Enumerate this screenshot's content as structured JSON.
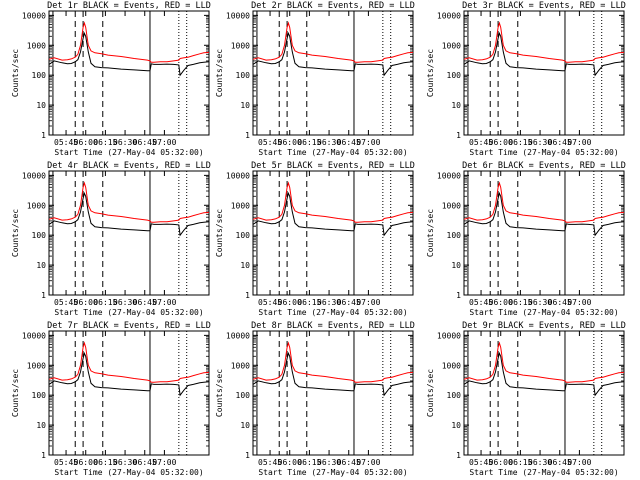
{
  "colors": {
    "background": "#ffffff",
    "axes": "#000000",
    "events": "#000000",
    "lld": "#ff0000"
  },
  "panel_titles": [
    "Det 1r BLACK = Events, RED = LLD",
    "Det 2r BLACK = Events, RED = LLD",
    "Det 3r BLACK = Events, RED = LLD",
    "Det 4r BLACK = Events, RED = LLD",
    "Det 5r BLACK = Events, RED = LLD",
    "Det 6r BLACK = Events, RED = LLD",
    "Det 7r BLACK = Events, RED = LLD",
    "Det 8r BLACK = Events, RED = LLD",
    "Det 9r BLACK = Events, RED = LLD"
  ],
  "chart_data": {
    "type": "line",
    "layout": "3x3 grid of panels",
    "ylabel": "Counts/sec",
    "xlabel": "Start Time (27-May-04 05:32:00)",
    "yscale": "log",
    "ylim": [
      1,
      14000
    ],
    "y_ticks": [
      1,
      10,
      100,
      1000,
      10000
    ],
    "y_tick_labels": [
      "1",
      "10",
      "100",
      "1000",
      "10000"
    ],
    "x_range_minutes": [
      0,
      122
    ],
    "x_ticks_minutes": [
      13,
      28,
      43,
      58,
      73,
      88
    ],
    "x_tick_labels": [
      "05:45",
      "06:00",
      "06:15",
      "06:30",
      "06:45",
      "07:00"
    ],
    "solid_vertical_lines_minutes": [
      3,
      77
    ],
    "dashed_vertical_lines_minutes": [
      20,
      26,
      41
    ],
    "dotted_vertical_lines_minutes": [
      99,
      105
    ],
    "x": [
      0,
      4,
      10,
      14,
      17,
      20,
      22,
      24,
      26,
      27,
      28,
      30,
      32,
      35,
      40,
      45,
      55,
      65,
      75,
      77,
      78,
      80,
      85,
      90,
      95,
      99,
      100,
      103,
      106,
      110,
      115,
      118,
      122
    ],
    "series": [
      {
        "name": "Events",
        "color": "#000000",
        "values": [
          230,
          300,
          260,
          240,
          245,
          280,
          330,
          600,
          1700,
          2500,
          2000,
          600,
          250,
          190,
          180,
          175,
          160,
          150,
          140,
          140,
          240,
          230,
          230,
          235,
          230,
          220,
          100,
          150,
          210,
          230,
          260,
          270,
          280
        ]
      },
      {
        "name": "LLD",
        "color": "#ff0000",
        "values": [
          340,
          380,
          320,
          330,
          350,
          400,
          500,
          1000,
          4000,
          5500,
          4000,
          1000,
          650,
          560,
          520,
          470,
          420,
          360,
          320,
          300,
          270,
          270,
          280,
          280,
          300,
          320,
          360,
          380,
          400,
          450,
          520,
          560,
          580
        ]
      }
    ]
  }
}
